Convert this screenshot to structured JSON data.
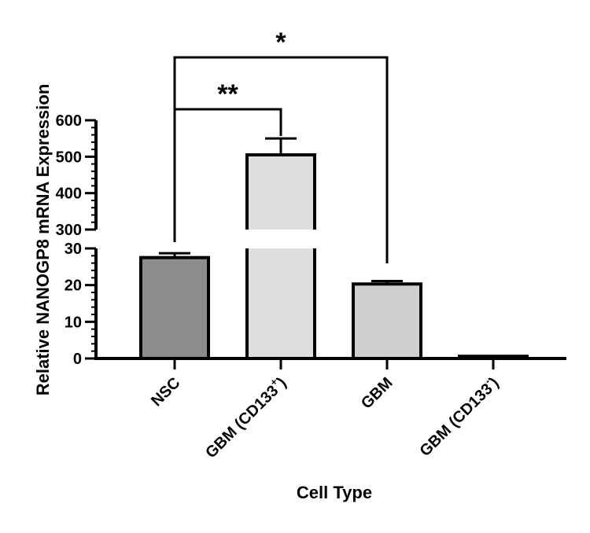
{
  "chart_data": {
    "type": "bar",
    "xlabel": "Cell Type",
    "ylabel": "Relative NANOGP8 mRNA Expression",
    "categories": [
      {
        "base": "NSC",
        "sup": ""
      },
      {
        "base": "GBM (CD133",
        "sup": "+",
        "close": ")"
      },
      {
        "base": "GBM",
        "sup": ""
      },
      {
        "base": "GBM (CD133",
        "sup": "-",
        "close": ")"
      }
    ],
    "values": [
      27.5,
      505,
      20.3,
      0.6
    ],
    "errors": [
      1.2,
      45,
      0.8,
      0.1
    ],
    "colors": [
      "#8c8c8c",
      "#dedede",
      "#cfcfcf",
      "#ffffff"
    ],
    "y_axis_broken": true,
    "y_lower_range": [
      0,
      30
    ],
    "y_upper_range": [
      300,
      600
    ],
    "y_lower_ticks": [
      0,
      10,
      20,
      30
    ],
    "y_upper_ticks": [
      300,
      400,
      500,
      600
    ],
    "significance": [
      {
        "from": 0,
        "to": 1,
        "label": "**"
      },
      {
        "from": 0,
        "to": 2,
        "label": "*"
      }
    ]
  }
}
